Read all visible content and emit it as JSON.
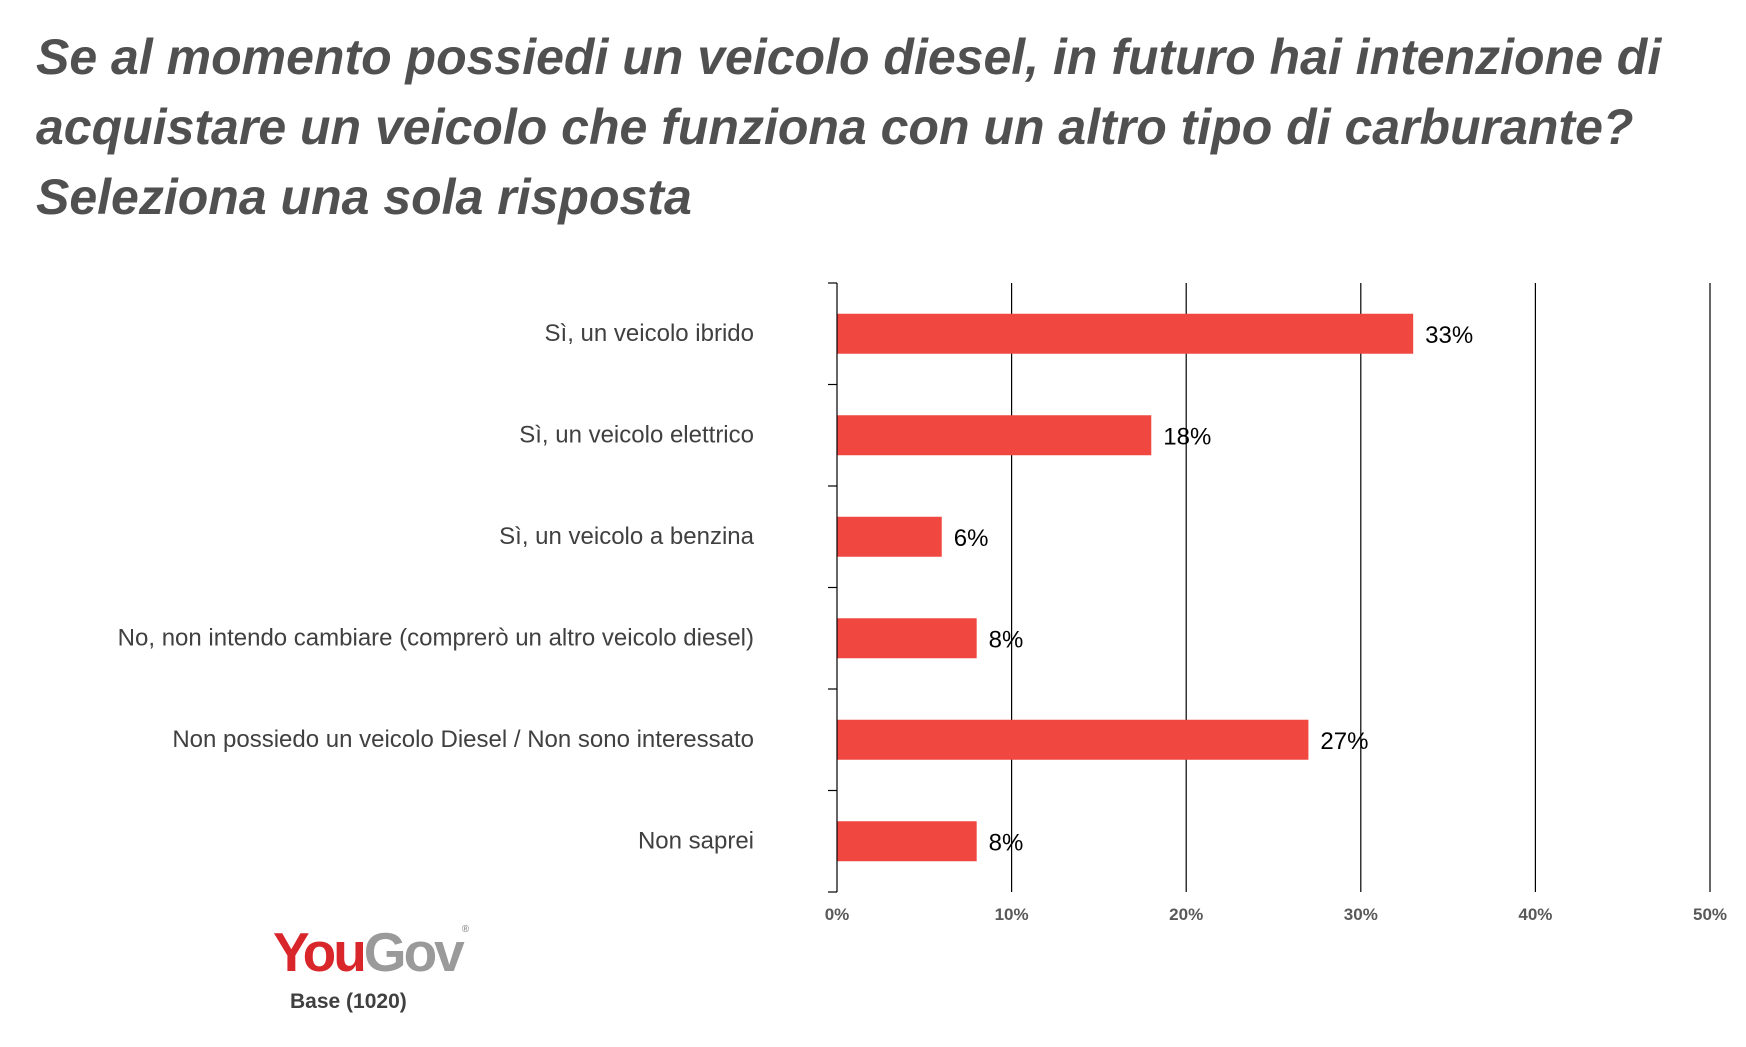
{
  "title_lines": [
    "Se al momento possiedi un veicolo diesel, in futuro hai intenzione di",
    "acquistare un veicolo che funziona con un altro tipo di carburante?",
    "Seleziona una sola risposta"
  ],
  "logo": {
    "you": "You",
    "gov": "Gov",
    "reg": "®"
  },
  "base_text": "Base (1020)",
  "colors": {
    "bar": "#f04840",
    "grid": "#000000",
    "title": "#505050"
  },
  "chart_data": {
    "type": "bar",
    "orientation": "horizontal",
    "categories": [
      "Sì, un veicolo ibrido",
      "Sì, un veicolo elettrico",
      "Sì, un veicolo a benzina",
      "No, non intendo cambiare (comprerò un altro veicolo diesel)",
      "Non possiedo un veicolo Diesel / Non sono interessato",
      "Non saprei"
    ],
    "values": [
      33,
      18,
      6,
      8,
      27,
      8
    ],
    "value_labels": [
      "33%",
      "18%",
      "6%",
      "8%",
      "27%",
      "8%"
    ],
    "xlim": [
      0,
      50
    ],
    "ticks": [
      0,
      10,
      20,
      30,
      40,
      50
    ],
    "tick_labels": [
      "0%",
      "10%",
      "20%",
      "30%",
      "40%",
      "50%"
    ],
    "grid": true
  }
}
